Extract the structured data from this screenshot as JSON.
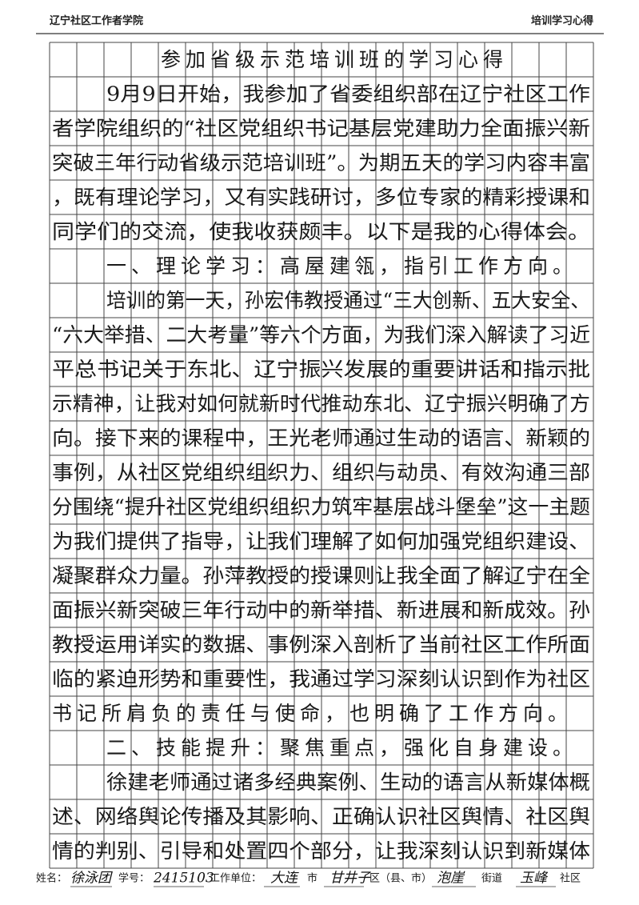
{
  "header": {
    "left": "辽宁社区工作者学院",
    "right": "培训学习心得"
  },
  "body": {
    "rows": [
      "参加省级示范培训班的学习心得",
      "9月9日开始，我参加了省委组织部在辽宁社区工作",
      "者学院组织的“社区党组织书记基层党建助力全面振兴新",
      "突破三年行动省级示范培训班”。为期五天的学习内容丰富",
      "，既有理论学习，又有实践研讨，多位专家的精彩授课和",
      "同学们的交流，使我收获颇丰。以下是我的心得体会。",
      "一、理论学习：高屋建瓴，指引工作方向。",
      "培训的第一天，孙宏伟教授通过“三大创新、五大安全、",
      "“六大举措、二大考量”等六个方面，为我们深入解读了习近",
      "平总书记关于东北、辽宁振兴发展的重要讲话和指示批",
      "示精神，让我对如何就新时代推动东北、辽宁振兴明确了方",
      "向。接下来的课程中，王光老师通过生动的语言、新颖的",
      "事例，从社区党组织组织力、组织与动员、有效沟通三部",
      "分围绕“提升社区党组织组织力筑牢基层战斗堡垒”这一主题",
      "为我们提供了指导，让我们理解了如何加强党组织建设、",
      "凝聚群众力量。孙萍教授的授课则让我全面了解辽宁在全",
      "面振兴新突破三年行动中的新举措、新进展和新成效。孙",
      "教授运用详实的数据、事例深入剖析了当前社区工作所面",
      "临的紧迫形势和重要性，我通过学习深刻认识到作为社区",
      "书记所肩负的责任与使命，也明确了工作方向。",
      "二、技能提升：聚焦重点，强化自身建设。",
      "徐建老师通过诸多经典案例、生动的语言从新媒体概",
      "述、网络舆论传播及其影响、正确认识社区舆情、社区舆",
      "情的判别、引导和处置四个部分，让我深刻认识到新媒体"
    ]
  },
  "footer": {
    "items": [
      "姓名：",
      "徐泳团",
      "学号：",
      "2415103",
      "工作单位：",
      "大连",
      "市",
      "甘井子",
      "区（县、市）",
      "泡崖",
      "街道",
      "玉峰",
      "社区"
    ]
  }
}
